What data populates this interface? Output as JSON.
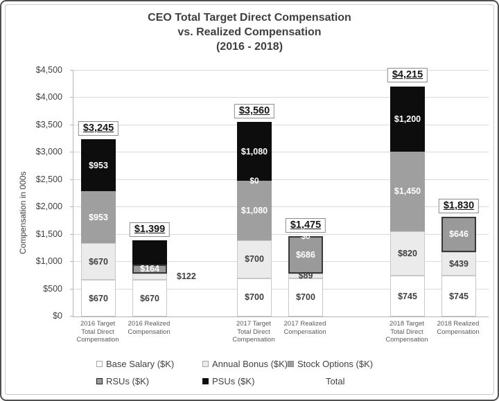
{
  "title_lines": [
    "CEO Total Target Direct Compensation",
    "vs. Realized Compensation",
    "(2016 - 2018)"
  ],
  "y_axis": {
    "label": "Compensation in 000s",
    "ticks": [
      "$0",
      "$500",
      "$1,000",
      "$1,500",
      "$2,000",
      "$2,500",
      "$3,000",
      "$3,500",
      "$4,000",
      "$4,500"
    ]
  },
  "legend": {
    "items": [
      {
        "key": "base",
        "label": "Base Salary ($K)"
      },
      {
        "key": "bonus",
        "label": "Annual Bonus ($K)"
      },
      {
        "key": "options",
        "label": "Stock Options ($K)"
      },
      {
        "key": "rsu",
        "label": "RSUs ($K)"
      },
      {
        "key": "psu",
        "label": "PSUs ($K)"
      },
      {
        "key": "total",
        "label": "Total"
      }
    ]
  },
  "colors": {
    "base": "#ffffff",
    "bonus": "#ebebeb",
    "options": "#9f9f9f",
    "rsu": "#9a9a9a",
    "rsu_border": "#383838",
    "psu": "#0d0d0d",
    "light_seg_border": "#c8c8c8",
    "grid": "#d9d9d9",
    "text": "#3f3f3f"
  },
  "chart_data": {
    "type": "bar",
    "stacked": true,
    "title": "CEO Total Target Direct Compensation vs. Realized Compensation (2016 - 2018)",
    "ylabel": "Compensation in 000s",
    "ylim": [
      0,
      4500
    ],
    "ytick_interval": 500,
    "grid": "horizontal",
    "legend_position": "bottom",
    "categories": [
      "2016 Target Total Direct Compensation",
      "2016 Realized Compensation",
      "2017 Target Total Direct Compensation",
      "2017 Realized Compensation",
      "2018 Target Total Direct Compensation",
      "2018 Realized Compensation"
    ],
    "series": [
      {
        "name": "Base Salary ($K)",
        "values": [
          670,
          670,
          700,
          700,
          745,
          745
        ]
      },
      {
        "name": "Annual Bonus ($K)",
        "values": [
          670,
          122,
          700,
          89,
          820,
          439
        ]
      },
      {
        "name": "Stock Options ($K)",
        "values": [
          953,
          0,
          1080,
          0,
          1450,
          0
        ]
      },
      {
        "name": "RSUs ($K)",
        "values": [
          0,
          164,
          0,
          686,
          0,
          646
        ]
      },
      {
        "name": "PSUs ($K)",
        "values": [
          953,
          443,
          1080,
          0,
          1200,
          0
        ]
      }
    ],
    "totals": [
      3245,
      1399,
      3560,
      1475,
      4215,
      1830
    ],
    "total_labels": [
      "$3,245",
      "$1,399",
      "$3,560",
      "$1,475",
      "$4,215",
      "$1,830"
    ],
    "bars": [
      {
        "category_lines": [
          "2016 Target",
          "Total Direct",
          "Compensation"
        ],
        "total_label": "$3,245",
        "segments": [
          {
            "key": "base",
            "value": 670,
            "label": "$670"
          },
          {
            "key": "bonus",
            "value": 670,
            "label": "$670"
          },
          {
            "key": "options",
            "value": 953,
            "label": "$953"
          },
          {
            "key": "psu",
            "value": 953,
            "label": "$953"
          }
        ]
      },
      {
        "category_lines": [
          "2016 Realized",
          "Compensation"
        ],
        "total_label": "$1,399",
        "segments": [
          {
            "key": "base",
            "value": 670,
            "label": "$670"
          },
          {
            "key": "bonus",
            "value": 122,
            "label": "$122",
            "label_outside": true
          },
          {
            "key": "rsu",
            "value": 164,
            "label": "$164"
          },
          {
            "key": "psu",
            "value": 443,
            "label": ""
          }
        ]
      },
      {
        "category_lines": [
          "2017 Target",
          "Total Direct",
          "Compensation"
        ],
        "total_label": "$3,560",
        "segments": [
          {
            "key": "base",
            "value": 700,
            "label": "$700"
          },
          {
            "key": "bonus",
            "value": 700,
            "label": "$700"
          },
          {
            "key": "options",
            "value": 1080,
            "label": "$1,080"
          },
          {
            "key": "rsu",
            "value": 0,
            "label": "$0"
          },
          {
            "key": "psu",
            "value": 1080,
            "label": "$1,080"
          }
        ]
      },
      {
        "category_lines": [
          "2017 Realized",
          "Compensation"
        ],
        "total_label": "$1,475",
        "segments": [
          {
            "key": "base",
            "value": 700,
            "label": "$700"
          },
          {
            "key": "bonus",
            "value": 89,
            "label": "$89"
          },
          {
            "key": "rsu",
            "value": 686,
            "label": "$686"
          },
          {
            "key": "psu",
            "value": 0,
            "label": "$0"
          }
        ]
      },
      {
        "category_lines": [
          "2018 Target",
          "Total Direct",
          "Compensation"
        ],
        "total_label": "$4,215",
        "segments": [
          {
            "key": "base",
            "value": 745,
            "label": "$745"
          },
          {
            "key": "bonus",
            "value": 820,
            "label": "$820"
          },
          {
            "key": "options",
            "value": 1450,
            "label": "$1,450"
          },
          {
            "key": "psu",
            "value": 1200,
            "label": "$1,200"
          }
        ]
      },
      {
        "category_lines": [
          "2018 Realized",
          "Compensation"
        ],
        "total_label": "$1,830",
        "segments": [
          {
            "key": "base",
            "value": 745,
            "label": "$745"
          },
          {
            "key": "bonus",
            "value": 439,
            "label": "$439"
          },
          {
            "key": "rsu",
            "value": 646,
            "label": "$646"
          }
        ]
      }
    ]
  }
}
